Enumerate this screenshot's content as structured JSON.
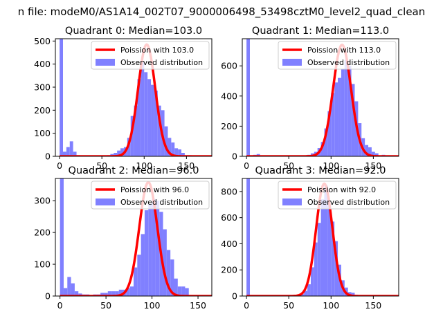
{
  "suptitle": "n file: modeM0/AS1A14_002T07_9000006498_53498cztM0_level2_quad_clean",
  "colors": {
    "hist": "#8080ff",
    "poisson": "#ff0000",
    "axis": "#000000"
  },
  "chart_data": [
    {
      "type": "bar",
      "title": "Quadrant 0: Median=103.0",
      "median": 103.0,
      "xlim": [
        -5,
        180
      ],
      "ylim": [
        0,
        510
      ],
      "xticks": [
        0,
        50,
        100,
        150
      ],
      "yticks": [
        0,
        100,
        200,
        300,
        400,
        500
      ],
      "bin_width": 4,
      "bins": [
        [
          0,
          510
        ],
        [
          4,
          20
        ],
        [
          8,
          40
        ],
        [
          12,
          65
        ],
        [
          16,
          20
        ],
        [
          20,
          5
        ],
        [
          24,
          0
        ],
        [
          28,
          0
        ],
        [
          32,
          0
        ],
        [
          36,
          0
        ],
        [
          40,
          0
        ],
        [
          44,
          0
        ],
        [
          48,
          0
        ],
        [
          52,
          0
        ],
        [
          56,
          5
        ],
        [
          60,
          10
        ],
        [
          64,
          15
        ],
        [
          68,
          25
        ],
        [
          72,
          35
        ],
        [
          76,
          40
        ],
        [
          80,
          80
        ],
        [
          84,
          175
        ],
        [
          88,
          220
        ],
        [
          92,
          335
        ],
        [
          96,
          410
        ],
        [
          100,
          365
        ],
        [
          104,
          335
        ],
        [
          108,
          310
        ],
        [
          112,
          285
        ],
        [
          116,
          220
        ],
        [
          120,
          200
        ],
        [
          124,
          130
        ],
        [
          128,
          80
        ],
        [
          132,
          60
        ],
        [
          136,
          35
        ],
        [
          140,
          30
        ],
        [
          144,
          15
        ],
        [
          148,
          5
        ],
        [
          152,
          5
        ],
        [
          156,
          0
        ],
        [
          160,
          0
        ],
        [
          164,
          0
        ],
        [
          168,
          0
        ],
        [
          172,
          0
        ]
      ],
      "poisson": {
        "lambda": 103.0,
        "peak": 485
      },
      "legend": [
        "Poission with 103.0",
        "Observed distribution"
      ]
    },
    {
      "type": "bar",
      "title": "Quadrant 1: Median=113.0",
      "median": 113.0,
      "xlim": [
        -5,
        180
      ],
      "ylim": [
        0,
        780
      ],
      "xticks": [
        0,
        50,
        100,
        150
      ],
      "yticks": [
        0,
        200,
        400,
        600
      ],
      "bin_width": 4,
      "bins": [
        [
          0,
          780
        ],
        [
          4,
          0
        ],
        [
          8,
          10
        ],
        [
          12,
          15
        ],
        [
          16,
          5
        ],
        [
          20,
          5
        ],
        [
          24,
          0
        ],
        [
          28,
          5
        ],
        [
          32,
          0
        ],
        [
          36,
          0
        ],
        [
          40,
          0
        ],
        [
          44,
          0
        ],
        [
          48,
          0
        ],
        [
          52,
          0
        ],
        [
          56,
          5
        ],
        [
          60,
          0
        ],
        [
          64,
          5
        ],
        [
          68,
          5
        ],
        [
          72,
          10
        ],
        [
          76,
          20
        ],
        [
          80,
          30
        ],
        [
          84,
          55
        ],
        [
          88,
          95
        ],
        [
          92,
          185
        ],
        [
          96,
          300
        ],
        [
          100,
          420
        ],
        [
          104,
          490
        ],
        [
          108,
          520
        ],
        [
          112,
          580
        ],
        [
          116,
          640
        ],
        [
          120,
          600
        ],
        [
          124,
          480
        ],
        [
          128,
          365
        ],
        [
          132,
          220
        ],
        [
          136,
          120
        ],
        [
          140,
          75
        ],
        [
          144,
          60
        ],
        [
          148,
          30
        ],
        [
          152,
          20
        ],
        [
          156,
          5
        ],
        [
          160,
          10
        ],
        [
          164,
          5
        ],
        [
          168,
          0
        ],
        [
          172,
          0
        ]
      ],
      "poisson": {
        "lambda": 113.0,
        "peak": 740
      },
      "legend": [
        "Poission with 113.0",
        "Observed distribution"
      ]
    },
    {
      "type": "bar",
      "title": "Quadrant 2: Median=96.0",
      "median": 96.0,
      "xlim": [
        -5,
        165
      ],
      "ylim": [
        0,
        370
      ],
      "xticks": [
        0,
        50,
        100,
        150
      ],
      "yticks": [
        0,
        100,
        200,
        300
      ],
      "bin_width": 4,
      "bins": [
        [
          0,
          370
        ],
        [
          4,
          25
        ],
        [
          8,
          60
        ],
        [
          12,
          40
        ],
        [
          16,
          15
        ],
        [
          20,
          8
        ],
        [
          24,
          5
        ],
        [
          28,
          5
        ],
        [
          32,
          0
        ],
        [
          36,
          5
        ],
        [
          40,
          5
        ],
        [
          44,
          10
        ],
        [
          48,
          10
        ],
        [
          52,
          15
        ],
        [
          56,
          15
        ],
        [
          60,
          15
        ],
        [
          64,
          20
        ],
        [
          68,
          20
        ],
        [
          72,
          25
        ],
        [
          76,
          30
        ],
        [
          80,
          90
        ],
        [
          84,
          130
        ],
        [
          88,
          195
        ],
        [
          92,
          270
        ],
        [
          96,
          290
        ],
        [
          100,
          305
        ],
        [
          104,
          300
        ],
        [
          108,
          265
        ],
        [
          112,
          210
        ],
        [
          116,
          145
        ],
        [
          120,
          115
        ],
        [
          124,
          55
        ],
        [
          128,
          30
        ],
        [
          132,
          30
        ],
        [
          136,
          25
        ],
        [
          140,
          0
        ],
        [
          144,
          0
        ],
        [
          148,
          0
        ],
        [
          152,
          0
        ],
        [
          156,
          0
        ]
      ],
      "poisson": {
        "lambda": 96.0,
        "peak": 358
      },
      "legend": [
        "Poission with 96.0",
        "Observed distribution"
      ]
    },
    {
      "type": "bar",
      "title": "Quadrant 3: Median=92.0",
      "median": 92.0,
      "xlim": [
        -5,
        180
      ],
      "ylim": [
        0,
        900
      ],
      "xticks": [
        0,
        50,
        100,
        150
      ],
      "yticks": [
        0,
        200,
        400,
        600,
        800
      ],
      "bin_width": 4,
      "bins": [
        [
          0,
          900
        ],
        [
          4,
          0
        ],
        [
          8,
          0
        ],
        [
          12,
          0
        ],
        [
          16,
          0
        ],
        [
          20,
          0
        ],
        [
          24,
          0
        ],
        [
          28,
          0
        ],
        [
          32,
          0
        ],
        [
          36,
          0
        ],
        [
          40,
          0
        ],
        [
          44,
          0
        ],
        [
          48,
          0
        ],
        [
          52,
          0
        ],
        [
          56,
          0
        ],
        [
          60,
          5
        ],
        [
          64,
          15
        ],
        [
          68,
          40
        ],
        [
          72,
          90
        ],
        [
          76,
          220
        ],
        [
          80,
          410
        ],
        [
          84,
          560
        ],
        [
          88,
          740
        ],
        [
          92,
          850
        ],
        [
          96,
          700
        ],
        [
          100,
          570
        ],
        [
          104,
          420
        ],
        [
          108,
          240
        ],
        [
          112,
          120
        ],
        [
          116,
          65
        ],
        [
          120,
          30
        ],
        [
          124,
          25
        ],
        [
          128,
          10
        ],
        [
          132,
          5
        ],
        [
          136,
          0
        ],
        [
          140,
          0
        ],
        [
          144,
          0
        ],
        [
          148,
          0
        ],
        [
          152,
          0
        ],
        [
          156,
          0
        ],
        [
          160,
          0
        ],
        [
          164,
          0
        ],
        [
          168,
          0
        ],
        [
          172,
          0
        ]
      ],
      "poisson": {
        "lambda": 92.0,
        "peak": 860
      },
      "legend": [
        "Poission with 92.0",
        "Observed distribution"
      ]
    }
  ]
}
